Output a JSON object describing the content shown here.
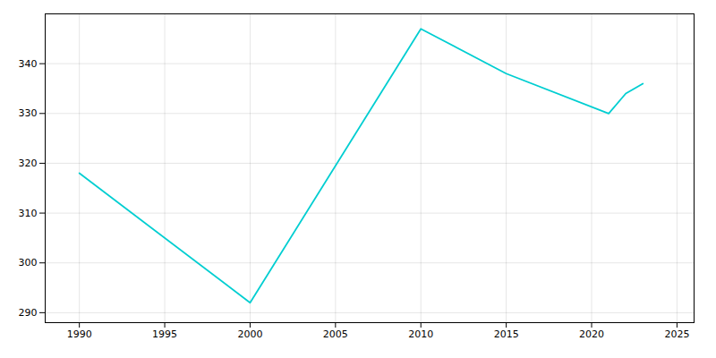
{
  "chart_data": {
    "type": "line",
    "x": [
      1990,
      2000,
      2010,
      2015,
      2021,
      2022,
      2023
    ],
    "values": [
      318,
      292,
      347,
      338,
      330,
      334,
      336
    ],
    "color": "#00CED1",
    "xlim": [
      1988,
      2026
    ],
    "ylim": [
      288,
      350
    ],
    "xticks": [
      1990,
      1995,
      2000,
      2005,
      2010,
      2015,
      2020,
      2025
    ],
    "yticks": [
      290,
      300,
      310,
      320,
      330,
      340
    ],
    "grid": true
  }
}
